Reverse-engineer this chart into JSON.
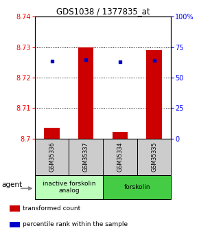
{
  "title": "GDS1038 / 1377835_at",
  "samples": [
    "GSM35336",
    "GSM35337",
    "GSM35334",
    "GSM35335"
  ],
  "red_values": [
    8.7035,
    8.73,
    8.7022,
    8.729
  ],
  "blue_values": [
    8.7255,
    8.7258,
    8.7252,
    8.7257
  ],
  "ylim_left": [
    8.7,
    8.74
  ],
  "ylim_right": [
    0,
    100
  ],
  "yticks_left": [
    8.7,
    8.71,
    8.72,
    8.73,
    8.74
  ],
  "yticks_right": [
    0,
    25,
    50,
    75,
    100
  ],
  "ytick_labels_left": [
    "8.7",
    "8.71",
    "8.72",
    "8.73",
    "8.74"
  ],
  "ytick_labels_right": [
    "0",
    "25",
    "50",
    "75",
    "100%"
  ],
  "groups": [
    {
      "label": "inactive forskolin\nanalog",
      "color": "#bbffbb"
    },
    {
      "label": "forskolin",
      "color": "#44cc44"
    }
  ],
  "agent_label": "agent",
  "legend_items": [
    {
      "color": "#cc0000",
      "label": "transformed count"
    },
    {
      "color": "#0000cc",
      "label": "percentile rank within the sample"
    }
  ],
  "bar_color": "#cc0000",
  "dot_color": "#0000cc",
  "bar_width": 0.45,
  "background_color": "#ffffff",
  "sample_box_color": "#cccccc",
  "title_fontsize": 8.5,
  "tick_fontsize": 7,
  "legend_fontsize": 6.5
}
